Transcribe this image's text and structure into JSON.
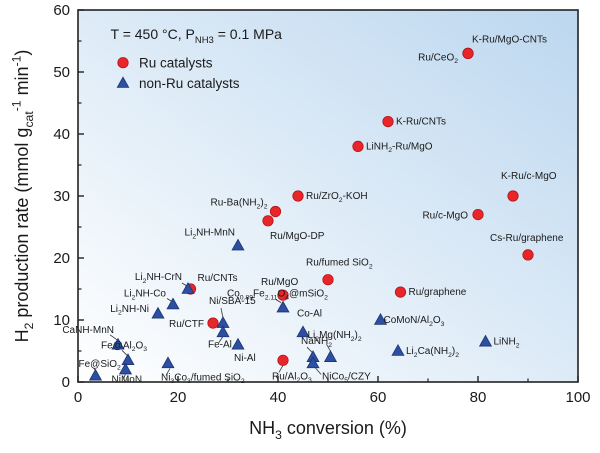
{
  "chart_data": {
    "type": "scatter",
    "condition_text": "T = 450 °C, P_{NH3} = 0.1 MPa",
    "xlabel": "NH_3 conversion (%)",
    "ylabel": "H_2 production rate (mmol g_{cat}^{-1} min^{-1})",
    "xlim": [
      0,
      100
    ],
    "ylim": [
      0,
      60
    ],
    "xticks": [
      0,
      20,
      40,
      60,
      80,
      100
    ],
    "yticks": [
      0,
      10,
      20,
      30,
      40,
      50,
      60
    ],
    "legend_position": "upper-left",
    "colors": {
      "ru": "#e8262a",
      "ru_edge": "#b51418",
      "nonru": "#2c4fa2",
      "nonru_edge": "#1c336e",
      "bg_left": "#ffffff",
      "bg_right": "#bcd7ef"
    },
    "series": [
      {
        "name": "Ru catalysts",
        "marker": "circle",
        "points": [
          {
            "label": "K-Ru/MgO-CNTs",
            "x": 78,
            "y": 53
          },
          {
            "label": "Ru/CeO_2",
            "x": 78,
            "y": 53
          },
          {
            "label": "K-Ru/CNTs",
            "x": 62,
            "y": 42
          },
          {
            "label": "LiNH_2-Ru/MgO",
            "x": 56,
            "y": 38
          },
          {
            "label": "Ru/ZrO_2-KOH",
            "x": 44,
            "y": 30
          },
          {
            "label": "Ru-Ba(NH_2)_2",
            "x": 39.5,
            "y": 27.5
          },
          {
            "label": "Ru/MgO-DP",
            "x": 38,
            "y": 26
          },
          {
            "label": "K-Ru/c-MgO",
            "x": 87,
            "y": 30
          },
          {
            "label": "Ru/c-MgO",
            "x": 80,
            "y": 27
          },
          {
            "label": "Cs-Ru/graphene",
            "x": 90,
            "y": 20.5
          },
          {
            "label": "Ru/fumed SiO_2",
            "x": 50,
            "y": 16.5
          },
          {
            "label": "Ru/graphene",
            "x": 64.5,
            "y": 14.5
          },
          {
            "label": "Ru/CNTs",
            "x": 22.5,
            "y": 15
          },
          {
            "label": "Ru/MgO",
            "x": 41,
            "y": 14
          },
          {
            "label": "Ru/CTF",
            "x": 27,
            "y": 9.5
          },
          {
            "label": "Ru/Al_2O_3",
            "x": 41,
            "y": 3.5
          }
        ]
      },
      {
        "name": "non-Ru catalysts",
        "marker": "triangle",
        "points": [
          {
            "label": "Li_2NH-MnN",
            "x": 32,
            "y": 22
          },
          {
            "label": "Li_2NH-CrN",
            "x": 22,
            "y": 15
          },
          {
            "label": "Li_2NH-Co",
            "x": 19,
            "y": 12.5
          },
          {
            "label": "Li_2NH-Ni",
            "x": 16,
            "y": 11
          },
          {
            "label": "CaNH-MnN",
            "x": 8,
            "y": 6
          },
          {
            "label": "Fe@Al_2O_3",
            "x": 10,
            "y": 3.5
          },
          {
            "label": "Fe@SiO_2",
            "x": 3.5,
            "y": 1
          },
          {
            "label": "NiMoN",
            "x": 9.5,
            "y": 2
          },
          {
            "label": "Ni_3Co_3/fumed SiO_2",
            "x": 18,
            "y": 3
          },
          {
            "label": "Ni/SBA-15",
            "x": 29,
            "y": 9.5
          },
          {
            "label": "Fe-Al",
            "x": 29,
            "y": 8
          },
          {
            "label": "Co_{0.89}Fe_{2.11}O_4@mSiO_2",
            "x": 41,
            "y": 12
          },
          {
            "label": "Co-Al",
            "x": 45,
            "y": 8
          },
          {
            "label": "Ni-Al",
            "x": 32,
            "y": 6
          },
          {
            "label": "Li_2Mg(NH_2)_2",
            "x": 50.5,
            "y": 4
          },
          {
            "label": "NaNH_2",
            "x": 47,
            "y": 4
          },
          {
            "label": "NiCo_5/CZY",
            "x": 47,
            "y": 3
          },
          {
            "label": "CoMoN/Al_2O_3",
            "x": 60.5,
            "y": 10
          },
          {
            "label": "Li_2Ca(NH_2)_2",
            "x": 64,
            "y": 5
          },
          {
            "label": "LiNH_2",
            "x": 81.5,
            "y": 6.5
          }
        ]
      }
    ]
  }
}
